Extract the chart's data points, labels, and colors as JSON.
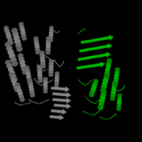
{
  "background_color": "#000000",
  "gray_color": "#888888",
  "green_color": "#00bb00",
  "image_size": 200,
  "dpi": 100,
  "gray_helices": [
    [
      0.08,
      0.62,
      0.022,
      0.072,
      -20
    ],
    [
      0.12,
      0.72,
      0.022,
      0.068,
      -15
    ],
    [
      0.08,
      0.5,
      0.02,
      0.065,
      -22
    ],
    [
      0.16,
      0.55,
      0.02,
      0.06,
      -15
    ],
    [
      0.1,
      0.42,
      0.018,
      0.058,
      -20
    ],
    [
      0.2,
      0.47,
      0.018,
      0.055,
      -12
    ],
    [
      0.14,
      0.35,
      0.018,
      0.055,
      -18
    ],
    [
      0.22,
      0.38,
      0.018,
      0.052,
      -10
    ],
    [
      0.06,
      0.75,
      0.018,
      0.055,
      -18
    ],
    [
      0.16,
      0.78,
      0.018,
      0.052,
      -12
    ],
    [
      0.26,
      0.68,
      0.018,
      0.05,
      -8
    ],
    [
      0.3,
      0.58,
      0.018,
      0.05,
      -5
    ],
    [
      0.34,
      0.68,
      0.018,
      0.05,
      2
    ],
    [
      0.28,
      0.48,
      0.018,
      0.05,
      -5
    ],
    [
      0.36,
      0.52,
      0.018,
      0.048,
      2
    ],
    [
      0.32,
      0.4,
      0.016,
      0.045,
      0
    ],
    [
      0.4,
      0.44,
      0.016,
      0.045,
      3
    ],
    [
      0.36,
      0.76,
      0.016,
      0.045,
      3
    ]
  ],
  "gray_strands": [
    [
      0.38,
      0.26,
      0.5,
      0.25,
      5
    ],
    [
      0.37,
      0.3,
      0.5,
      0.29,
      5
    ],
    [
      0.37,
      0.34,
      0.5,
      0.33,
      5
    ],
    [
      0.36,
      0.38,
      0.49,
      0.37,
      5
    ],
    [
      0.36,
      0.22,
      0.47,
      0.21,
      5
    ],
    [
      0.35,
      0.18,
      0.45,
      0.17,
      5
    ]
  ],
  "gray_loops": [
    [
      [
        0.24,
        0.26,
        0.29,
        0.33,
        0.36,
        0.37
      ],
      [
        0.45,
        0.42,
        0.4,
        0.42,
        0.43,
        0.44
      ]
    ],
    [
      [
        0.26,
        0.28,
        0.3,
        0.33
      ],
      [
        0.55,
        0.52,
        0.5,
        0.51
      ]
    ],
    [
      [
        0.38,
        0.4,
        0.42,
        0.44,
        0.45
      ],
      [
        0.58,
        0.55,
        0.53,
        0.55,
        0.57
      ]
    ],
    [
      [
        0.3,
        0.33,
        0.36,
        0.38
      ],
      [
        0.62,
        0.6,
        0.58,
        0.57
      ]
    ],
    [
      [
        0.2,
        0.24,
        0.28,
        0.32,
        0.35
      ],
      [
        0.3,
        0.28,
        0.27,
        0.29,
        0.3
      ]
    ],
    [
      [
        0.1,
        0.14,
        0.18,
        0.22
      ],
      [
        0.28,
        0.26,
        0.27,
        0.28
      ]
    ],
    [
      [
        0.36,
        0.38,
        0.4,
        0.42
      ],
      [
        0.8,
        0.78,
        0.77,
        0.78
      ]
    ]
  ],
  "green_helices": [
    [
      0.72,
      0.3,
      0.02,
      0.06,
      12
    ],
    [
      0.8,
      0.36,
      0.018,
      0.055,
      8
    ],
    [
      0.74,
      0.42,
      0.02,
      0.058,
      15
    ],
    [
      0.82,
      0.46,
      0.018,
      0.052,
      8
    ],
    [
      0.76,
      0.52,
      0.018,
      0.055,
      10
    ],
    [
      0.84,
      0.28,
      0.016,
      0.048,
      5
    ],
    [
      0.66,
      0.38,
      0.018,
      0.052,
      18
    ]
  ],
  "green_strands": [
    [
      0.55,
      0.58,
      0.78,
      0.62,
      -8
    ],
    [
      0.56,
      0.64,
      0.79,
      0.68,
      -8
    ],
    [
      0.57,
      0.7,
      0.8,
      0.74,
      -8
    ],
    [
      0.54,
      0.52,
      0.74,
      0.55,
      -5
    ]
  ],
  "green_loops": [
    [
      [
        0.58,
        0.62,
        0.66,
        0.7,
        0.72
      ],
      [
        0.22,
        0.2,
        0.19,
        0.22,
        0.25
      ]
    ],
    [
      [
        0.6,
        0.63,
        0.67,
        0.7
      ],
      [
        0.32,
        0.29,
        0.27,
        0.3
      ]
    ],
    [
      [
        0.55,
        0.57,
        0.6,
        0.63,
        0.65
      ],
      [
        0.44,
        0.42,
        0.4,
        0.42,
        0.44
      ]
    ],
    [
      [
        0.8,
        0.83,
        0.86,
        0.88
      ],
      [
        0.38,
        0.36,
        0.37,
        0.4
      ]
    ],
    [
      [
        0.7,
        0.74,
        0.78,
        0.82
      ],
      [
        0.18,
        0.16,
        0.17,
        0.2
      ]
    ],
    [
      [
        0.55,
        0.57,
        0.6
      ],
      [
        0.76,
        0.78,
        0.8
      ]
    ]
  ]
}
